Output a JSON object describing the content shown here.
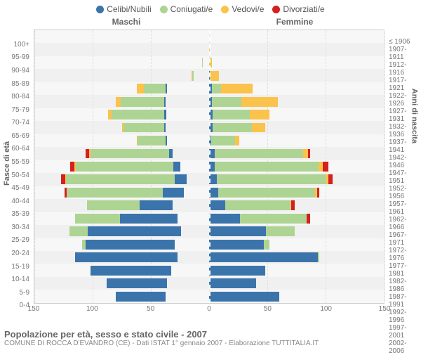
{
  "type": "population-pyramid",
  "title": "Popolazione per età, sesso e stato civile - 2007",
  "subtitle": "COMUNE DI ROCCA D'EVANDRO (CE) - Dati ISTAT 1° gennaio 2007 - Elaborazione TUTTITALIA.IT",
  "x_axis_max": 150,
  "x_ticks": [
    150,
    100,
    50,
    0,
    50,
    100,
    150
  ],
  "y_axis_left_title": "Fasce di età",
  "y_axis_right_title": "Anni di nascita",
  "gender_labels": {
    "male": "Maschi",
    "female": "Femmine"
  },
  "legend": [
    {
      "label": "Celibi/Nubili",
      "color": "#3b74ab"
    },
    {
      "label": "Coniugati/e",
      "color": "#aed494"
    },
    {
      "label": "Vedovi/e",
      "color": "#fbc24c"
    },
    {
      "label": "Divorziati/e",
      "color": "#d61f1f"
    }
  ],
  "colors": {
    "single": "#3b74ab",
    "married": "#aed494",
    "widowed": "#fbc24c",
    "divorced": "#d61f1f",
    "background": "#f7f7f7",
    "grid": "#dddddd",
    "text": "#666666"
  },
  "rows": [
    {
      "age": "100+",
      "birth": "≤ 1906",
      "m": [
        0,
        0,
        0,
        0
      ],
      "f": [
        0,
        0,
        1,
        0
      ]
    },
    {
      "age": "95-99",
      "birth": "1907-1911",
      "m": [
        0,
        0,
        1,
        0
      ],
      "f": [
        0,
        0,
        5,
        0
      ]
    },
    {
      "age": "90-94",
      "birth": "1912-1916",
      "m": [
        0,
        2,
        4,
        0
      ],
      "f": [
        2,
        1,
        15,
        0
      ]
    },
    {
      "age": "85-89",
      "birth": "1917-1921",
      "m": [
        0,
        10,
        5,
        0
      ],
      "f": [
        2,
        4,
        30,
        0
      ]
    },
    {
      "age": "80-84",
      "birth": "1922-1926",
      "m": [
        2,
        45,
        15,
        0
      ],
      "f": [
        5,
        15,
        55,
        0
      ]
    },
    {
      "age": "75-79",
      "birth": "1927-1931",
      "m": [
        2,
        70,
        8,
        0
      ],
      "f": [
        4,
        40,
        50,
        0
      ]
    },
    {
      "age": "70-74",
      "birth": "1932-1936",
      "m": [
        3,
        78,
        6,
        0
      ],
      "f": [
        5,
        55,
        28,
        0
      ]
    },
    {
      "age": "65-69",
      "birth": "1937-1941",
      "m": [
        2,
        70,
        3,
        0
      ],
      "f": [
        5,
        60,
        20,
        0
      ]
    },
    {
      "age": "60-64",
      "birth": "1942-1946",
      "m": [
        2,
        58,
        2,
        0
      ],
      "f": [
        4,
        50,
        8,
        0
      ]
    },
    {
      "age": "55-59",
      "birth": "1947-1951",
      "m": [
        5,
        95,
        2,
        4
      ],
      "f": [
        6,
        100,
        6,
        2
      ]
    },
    {
      "age": "50-54",
      "birth": "1952-1956",
      "m": [
        8,
        105,
        2,
        4
      ],
      "f": [
        6,
        108,
        4,
        6
      ]
    },
    {
      "age": "45-49",
      "birth": "1957-1961",
      "m": [
        12,
        110,
        1,
        4
      ],
      "f": [
        8,
        112,
        2,
        4
      ]
    },
    {
      "age": "40-44",
      "birth": "1962-1966",
      "m": [
        22,
        100,
        0,
        2
      ],
      "f": [
        10,
        105,
        2,
        2
      ]
    },
    {
      "age": "35-39",
      "birth": "1967-1971",
      "m": [
        40,
        65,
        0,
        0
      ],
      "f": [
        20,
        80,
        1,
        4
      ]
    },
    {
      "age": "30-34",
      "birth": "1972-1976",
      "m": [
        65,
        50,
        0,
        0
      ],
      "f": [
        35,
        75,
        0,
        4
      ]
    },
    {
      "age": "25-29",
      "birth": "1977-1981",
      "m": [
        100,
        20,
        0,
        0
      ],
      "f": [
        70,
        35,
        0,
        0
      ]
    },
    {
      "age": "20-24",
      "birth": "1982-1986",
      "m": [
        105,
        4,
        0,
        0
      ],
      "f": [
        80,
        8,
        0,
        0
      ]
    },
    {
      "age": "15-19",
      "birth": "1987-1991",
      "m": [
        115,
        0,
        0,
        0
      ],
      "f": [
        118,
        1,
        0,
        0
      ]
    },
    {
      "age": "10-14",
      "birth": "1992-1996",
      "m": [
        102,
        0,
        0,
        0
      ],
      "f": [
        85,
        0,
        0,
        0
      ]
    },
    {
      "age": "5-9",
      "birth": "1997-2001",
      "m": [
        88,
        0,
        0,
        0
      ],
      "f": [
        78,
        0,
        0,
        0
      ]
    },
    {
      "age": "0-4",
      "birth": "2002-2006",
      "m": [
        80,
        0,
        0,
        0
      ],
      "f": [
        95,
        0,
        0,
        0
      ]
    }
  ]
}
